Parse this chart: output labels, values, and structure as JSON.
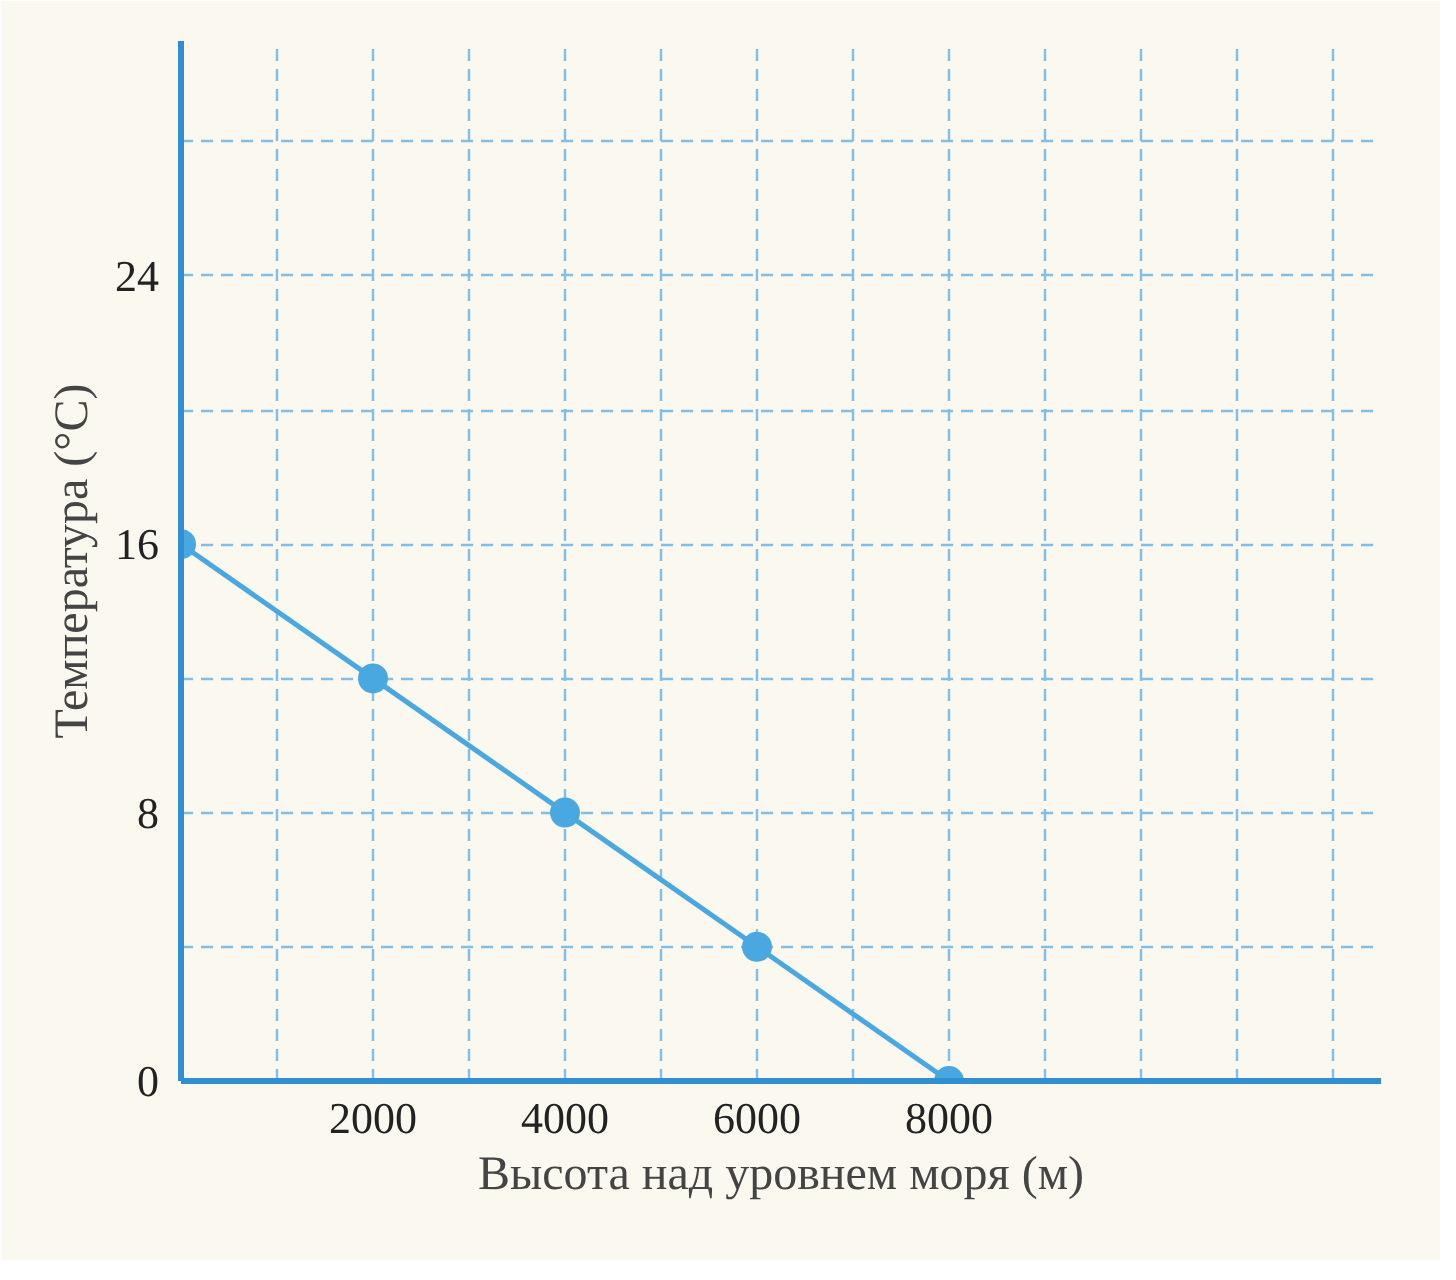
{
  "chart_data": {
    "type": "line",
    "xlabel": "Высота над уровнем моря (м)",
    "ylabel": "Температура (°C)",
    "x": [
      0,
      2000,
      4000,
      6000,
      8000
    ],
    "series": [
      {
        "color": "#4aa8e0",
        "values": [
          16,
          12,
          8,
          4,
          0
        ]
      }
    ],
    "xlim": [
      0,
      12500
    ],
    "ylim": [
      0,
      31
    ],
    "xticks": [
      {
        "value": 1000,
        "label": null
      },
      2000,
      {
        "value": 3000,
        "label": null
      },
      4000,
      {
        "value": 5000,
        "label": null
      },
      6000,
      {
        "value": 7000,
        "label": null
      },
      8000,
      {
        "value": 9000,
        "label": null
      },
      {
        "value": 10000,
        "label": null
      },
      {
        "value": 11000,
        "label": null
      },
      {
        "value": 12000,
        "label": null
      }
    ],
    "yticks": [
      0,
      {
        "value": 4,
        "label": null
      },
      8,
      {
        "value": 12,
        "label": null
      },
      16,
      {
        "value": 20,
        "label": null
      },
      24,
      {
        "value": 28,
        "label": null
      }
    ],
    "grid": true,
    "marker": "circle",
    "line_style": "solid"
  }
}
